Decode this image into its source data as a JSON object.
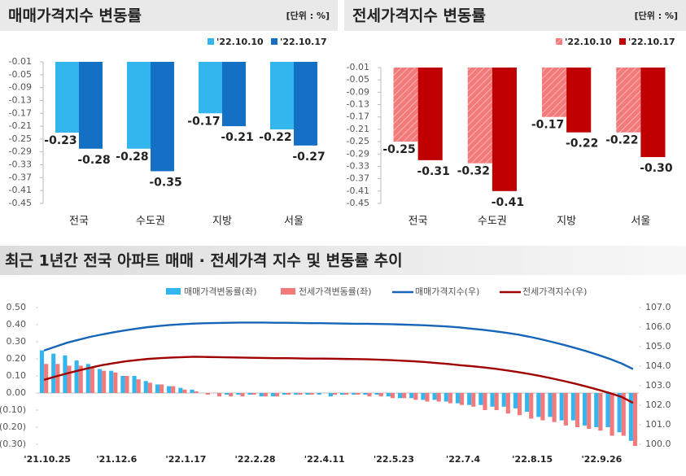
{
  "chart_data": [
    {
      "type": "bar",
      "title": "매매가격지수 변동률",
      "unit": "[단위 : %]",
      "categories": [
        "전국",
        "수도권",
        "지방",
        "서울"
      ],
      "series": [
        {
          "name": "'22.10.10",
          "color": "#33b5ee",
          "hatch": false,
          "values": [
            -0.23,
            -0.28,
            -0.17,
            -0.22
          ]
        },
        {
          "name": "'22.10.17",
          "color": "#1470c4",
          "hatch": false,
          "values": [
            -0.28,
            -0.35,
            -0.21,
            -0.27
          ]
        }
      ],
      "ylim": [
        -0.45,
        -0.01
      ],
      "yticks": [
        -0.01,
        -0.05,
        -0.09,
        -0.13,
        -0.17,
        -0.21,
        -0.25,
        -0.29,
        -0.33,
        -0.37,
        -0.41,
        -0.45
      ],
      "grid": false
    },
    {
      "type": "bar",
      "title": "전세가격지수 변동률",
      "unit": "[단위 : %]",
      "categories": [
        "전국",
        "수도권",
        "지방",
        "서울"
      ],
      "series": [
        {
          "name": "'22.10.10",
          "color": "#f27a7a",
          "hatch": true,
          "values": [
            -0.25,
            -0.32,
            -0.17,
            -0.22
          ]
        },
        {
          "name": "'22.10.17",
          "color": "#c00000",
          "hatch": false,
          "values": [
            -0.31,
            -0.41,
            -0.22,
            -0.3
          ],
          "value_labels": [
            "-0.31",
            "-0.41",
            "-0.22",
            "-0.30"
          ]
        }
      ],
      "ylim": [
        -0.45,
        -0.01
      ],
      "yticks": [
        -0.01,
        -0.05,
        -0.09,
        -0.13,
        -0.17,
        -0.21,
        -0.25,
        -0.29,
        -0.33,
        -0.37,
        -0.41,
        -0.45
      ],
      "grid": false
    },
    {
      "type": "combo",
      "title": "최근 1년간 전국 아파트 매매 · 전세가격 지수 및 변동률 추이",
      "categories": [
        "'21.10.25",
        null,
        null,
        null,
        null,
        null,
        "'21.12.6",
        null,
        null,
        null,
        null,
        null,
        "'22.1.17",
        null,
        null,
        null,
        null,
        null,
        "'22.2.28",
        null,
        null,
        null,
        null,
        null,
        "'22.4.11",
        null,
        null,
        null,
        null,
        null,
        "'22.5.23",
        null,
        null,
        null,
        null,
        null,
        "'22.7.4",
        null,
        null,
        null,
        null,
        null,
        "'22.8.15",
        null,
        null,
        null,
        null,
        null,
        "'22.9.26",
        null,
        null,
        null
      ],
      "series": [
        {
          "name": "매매가격변동률(좌)",
          "type": "bar",
          "color": "#33b5ee",
          "values": [
            0.25,
            0.23,
            0.22,
            0.19,
            0.17,
            0.14,
            0.13,
            0.1,
            0.1,
            0.07,
            0.05,
            0.04,
            0.03,
            0.02,
            0.0,
            0.0,
            -0.01,
            -0.01,
            -0.01,
            -0.02,
            -0.02,
            -0.01,
            -0.01,
            -0.01,
            -0.01,
            -0.02,
            -0.01,
            -0.01,
            -0.01,
            -0.01,
            -0.02,
            -0.03,
            -0.03,
            -0.04,
            -0.04,
            -0.05,
            -0.06,
            -0.07,
            -0.07,
            -0.08,
            -0.08,
            -0.09,
            -0.11,
            -0.14,
            -0.14,
            -0.16,
            -0.16,
            -0.19,
            -0.2,
            -0.2,
            -0.23,
            -0.28
          ]
        },
        {
          "name": "전세가격변동률(좌)",
          "type": "bar",
          "color": "#f27a7a",
          "values": [
            0.17,
            0.17,
            0.16,
            0.16,
            0.15,
            0.13,
            0.12,
            0.1,
            0.08,
            0.06,
            0.05,
            0.04,
            0.02,
            0.01,
            -0.01,
            -0.02,
            -0.02,
            -0.02,
            -0.01,
            -0.02,
            -0.02,
            -0.01,
            -0.01,
            -0.01,
            0.0,
            -0.01,
            -0.01,
            -0.01,
            -0.02,
            -0.02,
            -0.03,
            -0.03,
            -0.04,
            -0.05,
            -0.05,
            -0.06,
            -0.07,
            -0.08,
            -0.1,
            -0.1,
            -0.12,
            -0.13,
            -0.15,
            -0.16,
            -0.17,
            -0.19,
            -0.2,
            -0.21,
            -0.22,
            -0.25,
            -0.25,
            -0.31
          ]
        },
        {
          "name": "매매가격지수(우)",
          "type": "line",
          "axis": "y2",
          "color": "#1565b8",
          "values": [
            104.8,
            105.0,
            105.2,
            105.35,
            105.5,
            105.62,
            105.73,
            105.83,
            105.92,
            106.0,
            106.06,
            106.11,
            106.15,
            106.18,
            106.2,
            106.21,
            106.22,
            106.23,
            106.23,
            106.23,
            106.22,
            106.22,
            106.21,
            106.2,
            106.2,
            106.19,
            106.18,
            106.17,
            106.17,
            106.16,
            106.15,
            106.13,
            106.11,
            106.09,
            106.06,
            106.03,
            105.98,
            105.92,
            105.86,
            105.79,
            105.71,
            105.62,
            105.51,
            105.38,
            105.24,
            105.09,
            104.93,
            104.76,
            104.57,
            104.37,
            104.14,
            103.85
          ]
        },
        {
          "name": "전세가격지수(우)",
          "type": "line",
          "axis": "y2",
          "color": "#a00000",
          "values": [
            103.3,
            103.47,
            103.63,
            103.78,
            103.92,
            104.05,
            104.15,
            104.24,
            104.31,
            104.37,
            104.41,
            104.44,
            104.46,
            104.48,
            104.47,
            104.46,
            104.45,
            104.44,
            104.43,
            104.42,
            104.41,
            104.41,
            104.4,
            104.39,
            104.39,
            104.38,
            104.37,
            104.36,
            104.35,
            104.33,
            104.31,
            104.28,
            104.25,
            104.21,
            104.16,
            104.11,
            104.05,
            104.0,
            103.94,
            103.87,
            103.79,
            103.7,
            103.6,
            103.49,
            103.37,
            103.24,
            103.1,
            102.95,
            102.79,
            102.62,
            102.43,
            102.12
          ]
        }
      ],
      "ylim": [
        -0.3,
        0.5
      ],
      "yticks": [
        {
          "value": 0.5,
          "label": "0.50"
        },
        {
          "value": 0.4,
          "label": "0.40"
        },
        {
          "value": 0.3,
          "label": "0.30"
        },
        {
          "value": 0.2,
          "label": "0.20"
        },
        {
          "value": 0.1,
          "label": "0.10"
        },
        {
          "value": 0,
          "label": "0.00"
        },
        {
          "value": -0.1,
          "label": "(0.10)"
        },
        {
          "value": -0.2,
          "label": "(0.20)"
        },
        {
          "value": -0.3,
          "label": "(0.30)"
        }
      ],
      "y2lim": [
        100,
        107
      ],
      "y2ticks": [
        {
          "value": 107,
          "label": "107.0"
        },
        {
          "value": 106,
          "label": "106.0"
        },
        {
          "value": 105,
          "label": "105.0"
        },
        {
          "value": 104,
          "label": "104.0"
        },
        {
          "value": 103,
          "label": "103.0"
        },
        {
          "value": 102,
          "label": "102.0"
        },
        {
          "value": 101,
          "label": "101.0"
        },
        {
          "value": 100,
          "label": "100.0"
        }
      ],
      "grid": false
    }
  ]
}
